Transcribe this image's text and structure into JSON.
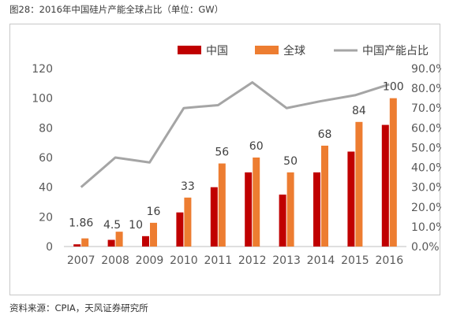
{
  "figure": {
    "title": "图28：2016年中国硅片产能全球占比（单位：GW）",
    "source": "资料来源：CPIA，天风证券研究所"
  },
  "colors": {
    "china_bar": "#C00000",
    "global_bar": "#ED7D31",
    "share_line": "#A5A5A5"
  },
  "chart_data": {
    "type": "bar",
    "title": "",
    "xlabel": "",
    "ylabel": "",
    "categories": [
      "2007",
      "2008",
      "2009",
      "2010",
      "2011",
      "2012",
      "2013",
      "2014",
      "2015",
      "2016"
    ],
    "ylim": [
      0,
      120
    ],
    "yticks": [
      "0",
      "20",
      "40",
      "60",
      "80",
      "100",
      "120"
    ],
    "y2lim": [
      0,
      0.9
    ],
    "y2ticks": [
      "0.0%",
      "10.0%",
      "20.0%",
      "30.0%",
      "40.0%",
      "50.0%",
      "60.0%",
      "70.0%",
      "80.0%",
      "90.0%"
    ],
    "legend_position": "top-right",
    "series": [
      {
        "name": "中国",
        "type": "bar",
        "axis": "left",
        "values": [
          1.5,
          4.5,
          7,
          23,
          40,
          50,
          35,
          50,
          64,
          82
        ]
      },
      {
        "name": "全球",
        "type": "bar",
        "axis": "left",
        "values": [
          5.5,
          10,
          16,
          33,
          56,
          60,
          50,
          68,
          84,
          100
        ]
      },
      {
        "name": "中国产能占比",
        "type": "line",
        "axis": "right",
        "values": [
          0.3,
          0.45,
          0.425,
          0.7,
          0.715,
          0.83,
          0.7,
          0.735,
          0.765,
          0.82
        ]
      }
    ],
    "data_labels": [
      "1.86",
      "4.5",
      "10",
      "16",
      "33",
      "56",
      "60",
      "50",
      "68",
      "84",
      "100"
    ]
  }
}
